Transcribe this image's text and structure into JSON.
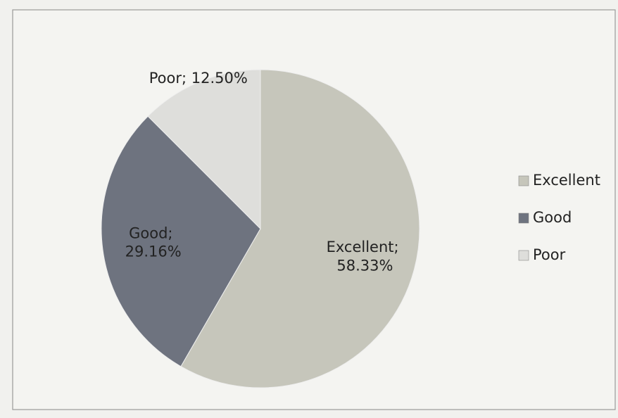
{
  "chart_data": {
    "type": "pie",
    "categories": [
      "Excellent",
      "Good",
      "Poor"
    ],
    "values": [
      58.33,
      29.16,
      12.5
    ],
    "value_labels": [
      "Excellent; 58.33%",
      "Good; 29.16%",
      "Poor; 12.50%"
    ],
    "colors": [
      "#c6c6bb",
      "#6e737f",
      "#dededb"
    ],
    "legend": "right"
  }
}
